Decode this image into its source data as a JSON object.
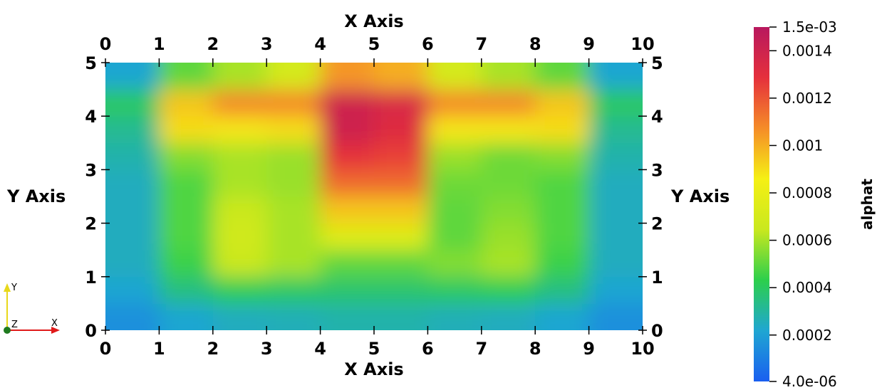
{
  "chart_data": {
    "type": "heatmap",
    "x_axis": {
      "title": "X Axis",
      "range": [
        0,
        10
      ],
      "ticks": [
        0,
        1,
        2,
        3,
        4,
        5,
        6,
        7,
        8,
        9,
        10
      ],
      "tick_labels": [
        "0",
        "1",
        "2",
        "3",
        "4",
        "5",
        "6",
        "7",
        "8",
        "9",
        "10"
      ]
    },
    "y_axis": {
      "title": "Y Axis",
      "range": [
        0,
        5
      ],
      "ticks": [
        0,
        1,
        2,
        3,
        4,
        5
      ],
      "tick_labels": [
        "0",
        "1",
        "2",
        "3",
        "4",
        "5"
      ]
    },
    "field": {
      "name": "alphat",
      "range": [
        4e-06,
        0.0015
      ],
      "x": [
        0.5,
        1.5,
        2.5,
        3.5,
        4.5,
        5.5,
        6.5,
        7.5,
        8.5,
        9.5
      ],
      "y": [
        0.25,
        0.75,
        1.25,
        1.75,
        2.25,
        2.75,
        3.25,
        3.75,
        4.25,
        4.75
      ],
      "values": [
        [
          0.00015,
          0.00022,
          0.00025,
          0.00026,
          0.00028,
          0.00028,
          0.00026,
          0.00025,
          0.00022,
          0.00015
        ],
        [
          0.00022,
          0.00035,
          0.00042,
          0.0004,
          0.00038,
          0.00038,
          0.0004,
          0.00042,
          0.00035,
          0.00022
        ],
        [
          0.00025,
          0.00045,
          0.00065,
          0.0006,
          0.0005,
          0.0005,
          0.00055,
          0.0006,
          0.00045,
          0.00025
        ],
        [
          0.00025,
          0.00048,
          0.00068,
          0.0006,
          0.00075,
          0.00075,
          0.0005,
          0.00058,
          0.00048,
          0.00025
        ],
        [
          0.00025,
          0.00048,
          0.00065,
          0.0006,
          0.00095,
          0.00095,
          0.0005,
          0.00055,
          0.00048,
          0.00025
        ],
        [
          0.00025,
          0.00048,
          0.0006,
          0.00058,
          0.00115,
          0.00115,
          0.00052,
          0.00052,
          0.00048,
          0.00025
        ],
        [
          0.00028,
          0.00055,
          0.0006,
          0.00058,
          0.00128,
          0.00125,
          0.00058,
          0.00052,
          0.00055,
          0.00028
        ],
        [
          0.00032,
          0.0009,
          0.00088,
          0.0009,
          0.0014,
          0.00132,
          0.00088,
          0.00088,
          0.0009,
          0.00032
        ],
        [
          0.0004,
          0.00095,
          0.00108,
          0.00108,
          0.0014,
          0.00135,
          0.00108,
          0.00108,
          0.00095,
          0.0004
        ],
        [
          0.00022,
          0.0005,
          0.0006,
          0.0007,
          0.00105,
          0.001,
          0.0007,
          0.0006,
          0.0005,
          0.00022
        ]
      ]
    },
    "colorbar": {
      "title": "alphat",
      "top_label": "1.5e-03",
      "bottom_label": "4.0e-06",
      "tick_values": [
        0.0014,
        0.0012,
        0.001,
        0.0008,
        0.0006,
        0.0004,
        0.0002
      ],
      "tick_labels": [
        "0.0014",
        "0.0012",
        "0.001",
        "0.0008",
        "0.0006",
        "0.0004",
        "0.0002"
      ],
      "colormap": [
        "#1a5ff0",
        "#1fa6d2",
        "#2ccf4c",
        "#c9e81e",
        "#f5f014",
        "#f58c28",
        "#e5303c",
        "#b8185e"
      ]
    },
    "orientation_triad": {
      "labels": [
        "Y",
        "Z",
        "X"
      ],
      "colors": [
        "#e8d81a",
        "#1f7a1f",
        "#e01a1a"
      ]
    }
  }
}
